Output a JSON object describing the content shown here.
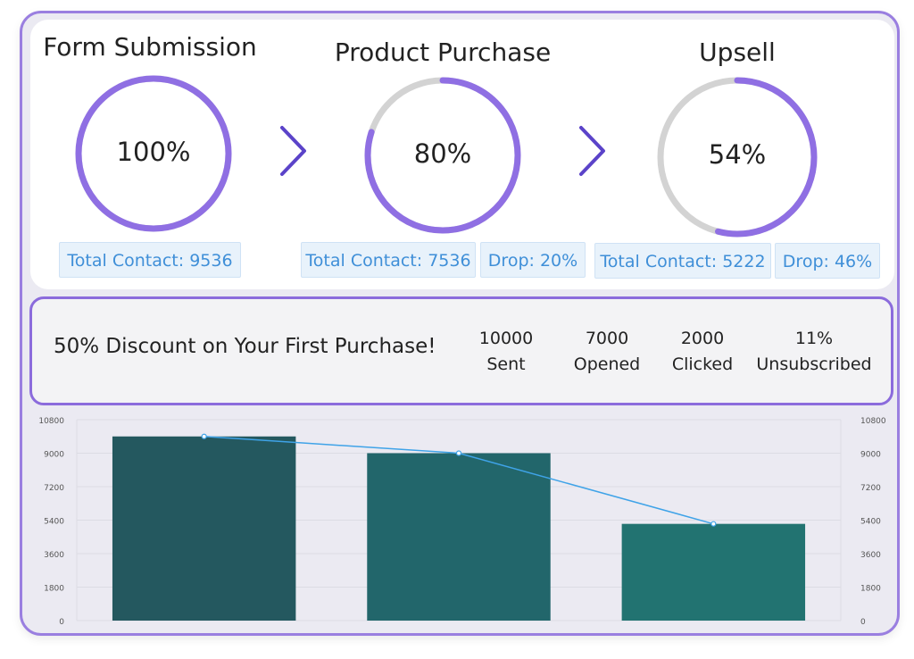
{
  "funnel": {
    "stages": [
      {
        "title": "Form Submission",
        "percent_label": "100%",
        "percent": 100,
        "total_label": "Total Contact: 9536",
        "drop_label": ""
      },
      {
        "title": "Product Purchase",
        "percent_label": "80%",
        "percent": 80,
        "total_label": "Total Contact: 7536",
        "drop_label": "Drop: 20%"
      },
      {
        "title": "Upsell",
        "percent_label": "54%",
        "percent": 54,
        "total_label": "Total Contact: 5222",
        "drop_label": "Drop: 46%"
      }
    ],
    "colors": {
      "progress": "#8f6fe3",
      "track": "#d3d3d3",
      "chevron": "#5b43c9"
    }
  },
  "campaign": {
    "title": "50% Discount on Your First Purchase!",
    "stats": [
      {
        "value": "10000",
        "label": "Sent"
      },
      {
        "value": "7000",
        "label": "Opened"
      },
      {
        "value": "2000",
        "label": "Clicked"
      },
      {
        "value": "11%",
        "label": "Unsubscribed"
      }
    ]
  },
  "chart_data": {
    "type": "bar",
    "categories": [
      "",
      "",
      ""
    ],
    "values": [
      9900,
      9000,
      5200
    ],
    "line_values": [
      9900,
      9000,
      5200
    ],
    "ylim": [
      0,
      10800
    ],
    "yticks": [
      "0",
      "1800",
      "3600",
      "5400",
      "7200",
      "9000",
      "10800"
    ],
    "grid": true,
    "colors": {
      "bars": [
        "#24585f",
        "#22666b",
        "#227371"
      ],
      "line": "#3fa3e8",
      "grid": "#dcdce4",
      "tick": "#555555"
    }
  }
}
